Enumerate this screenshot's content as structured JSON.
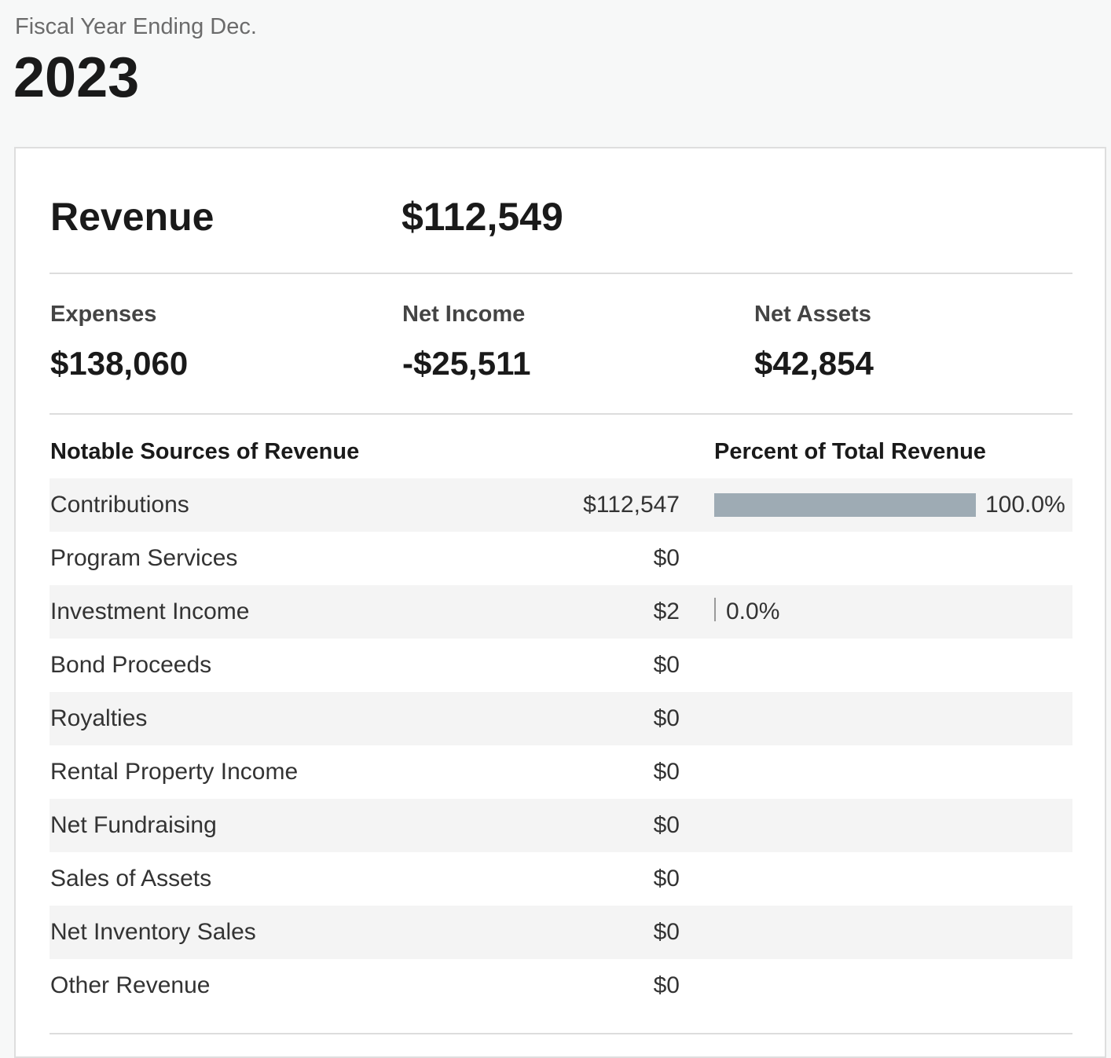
{
  "fiscal_year": {
    "label": "Fiscal Year Ending Dec.",
    "year": "2023"
  },
  "summary": {
    "revenue_label": "Revenue",
    "revenue_value": "$112,549",
    "expenses_label": "Expenses",
    "expenses_value": "$138,060",
    "net_income_label": "Net Income",
    "net_income_value": "-$25,511",
    "net_assets_label": "Net Assets",
    "net_assets_value": "$42,854"
  },
  "table": {
    "header_left": "Notable Sources of Revenue",
    "header_right": "Percent of Total Revenue",
    "rows": [
      {
        "label": "Contributions",
        "amount": "$112,547",
        "percent": "100.0%",
        "fraction": 1.0
      },
      {
        "label": "Program Services",
        "amount": "$0",
        "percent": null,
        "fraction": null
      },
      {
        "label": "Investment Income",
        "amount": "$2",
        "percent": "0.0%",
        "fraction": 0.0
      },
      {
        "label": "Bond Proceeds",
        "amount": "$0",
        "percent": null,
        "fraction": null
      },
      {
        "label": "Royalties",
        "amount": "$0",
        "percent": null,
        "fraction": null
      },
      {
        "label": "Rental Property Income",
        "amount": "$0",
        "percent": null,
        "fraction": null
      },
      {
        "label": "Net Fundraising",
        "amount": "$0",
        "percent": null,
        "fraction": null
      },
      {
        "label": "Sales of Assets",
        "amount": "$0",
        "percent": null,
        "fraction": null
      },
      {
        "label": "Net Inventory Sales",
        "amount": "$0",
        "percent": null,
        "fraction": null
      },
      {
        "label": "Other Revenue",
        "amount": "$0",
        "percent": null,
        "fraction": null
      }
    ]
  },
  "colors": {
    "bar": "#9eabb4",
    "row_shade": "#f4f4f4"
  }
}
